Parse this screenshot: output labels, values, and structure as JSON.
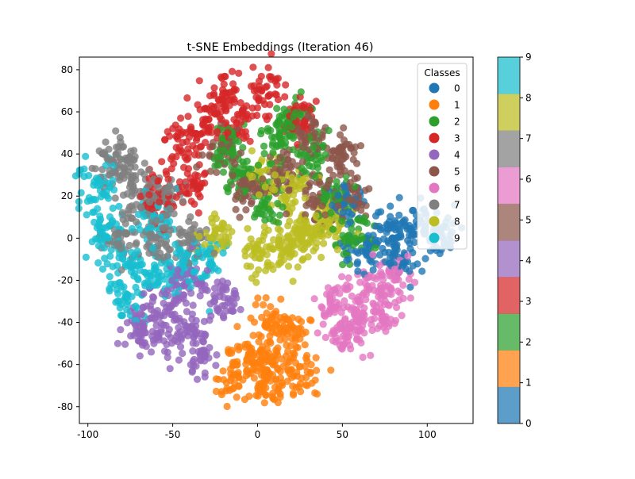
{
  "chart_data": {
    "type": "scatter",
    "title": "t-SNE Embeddings (Iteration 46)",
    "xlabel": "",
    "ylabel": "",
    "xlim": [
      -105,
      127
    ],
    "ylim": [
      -88,
      86
    ],
    "x_ticks": [
      -100,
      -50,
      0,
      50,
      100
    ],
    "y_ticks": [
      -80,
      -60,
      -40,
      -20,
      0,
      20,
      40,
      60,
      80
    ],
    "grid": false,
    "legend": {
      "title": "Classes",
      "placement": "top-right",
      "labels": [
        "0",
        "1",
        "2",
        "3",
        "4",
        "5",
        "6",
        "7",
        "8",
        "9"
      ]
    },
    "colorbar": {
      "range": [
        0,
        9
      ],
      "ticks": [
        0,
        1,
        2,
        3,
        4,
        5,
        6,
        7,
        8,
        9
      ]
    },
    "class_colors": [
      "#1f77b4",
      "#ff7f0e",
      "#2ca02c",
      "#d62728",
      "#9467bd",
      "#8c564b",
      "#e377c2",
      "#7f7f7f",
      "#bcbd22",
      "#17becf"
    ],
    "cluster_centers": [
      {
        "class": "0",
        "centers": [
          [
            78,
            2
          ],
          [
            95,
            5
          ],
          [
            108,
            3
          ],
          [
            62,
            -5
          ],
          [
            85,
            -8
          ],
          [
            52,
            18
          ]
        ]
      },
      {
        "class": "1",
        "centers": [
          [
            -5,
            -55
          ],
          [
            10,
            -60
          ],
          [
            20,
            -45
          ],
          [
            5,
            -70
          ],
          [
            -15,
            -65
          ],
          [
            25,
            -65
          ],
          [
            10,
            -40
          ]
        ]
      },
      {
        "class": "2",
        "centers": [
          [
            10,
            45
          ],
          [
            -10,
            30
          ],
          [
            30,
            40
          ],
          [
            5,
            15
          ],
          [
            45,
            20
          ],
          [
            20,
            55
          ],
          [
            -20,
            45
          ],
          [
            55,
            0
          ]
        ]
      },
      {
        "class": "3",
        "centers": [
          [
            -30,
            55
          ],
          [
            -22,
            68
          ],
          [
            -10,
            55
          ],
          [
            25,
            55
          ],
          [
            5,
            70
          ],
          [
            -40,
            25
          ],
          [
            -60,
            20
          ],
          [
            -45,
            45
          ]
        ]
      },
      {
        "class": "4",
        "centers": [
          [
            -60,
            -45
          ],
          [
            -40,
            -45
          ],
          [
            -70,
            -40
          ],
          [
            -35,
            -55
          ],
          [
            -20,
            -30
          ],
          [
            -50,
            -30
          ],
          [
            -40,
            -20
          ]
        ]
      },
      {
        "class": "5",
        "centers": [
          [
            30,
            50
          ],
          [
            50,
            40
          ],
          [
            -20,
            40
          ],
          [
            15,
            30
          ],
          [
            35,
            20
          ],
          [
            55,
            20
          ],
          [
            -5,
            20
          ]
        ]
      },
      {
        "class": "6",
        "centers": [
          [
            60,
            -40
          ],
          [
            75,
            -35
          ],
          [
            45,
            -30
          ],
          [
            65,
            -25
          ],
          [
            80,
            -20
          ],
          [
            50,
            -45
          ]
        ]
      },
      {
        "class": "7",
        "centers": [
          [
            -85,
            38
          ],
          [
            -75,
            30
          ],
          [
            -70,
            20
          ],
          [
            -80,
            0
          ],
          [
            -60,
            0
          ],
          [
            -55,
            20
          ],
          [
            -40,
            0
          ]
        ]
      },
      {
        "class": "8",
        "centers": [
          [
            5,
            30
          ],
          [
            20,
            20
          ],
          [
            0,
            -5
          ],
          [
            15,
            -5
          ],
          [
            35,
            5
          ],
          [
            45,
            10
          ],
          [
            -25,
            0
          ],
          [
            25,
            0
          ]
        ]
      },
      {
        "class": "9",
        "centers": [
          [
            -90,
            5
          ],
          [
            -80,
            -10
          ],
          [
            -60,
            -15
          ],
          [
            -75,
            -30
          ],
          [
            -95,
            25
          ],
          [
            -45,
            -15
          ],
          [
            -30,
            -10
          ],
          [
            -60,
            10
          ]
        ]
      }
    ]
  }
}
